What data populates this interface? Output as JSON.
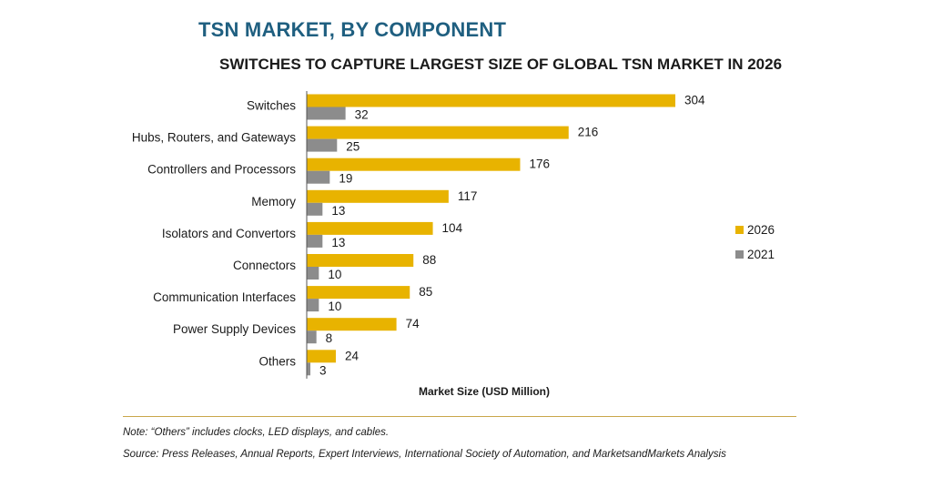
{
  "header": {
    "title": "TSN MARKET, BY COMPONENT",
    "subtitle": "SWITCHES TO CAPTURE LARGEST SIZE OF GLOBAL TSN MARKET IN 2026"
  },
  "chart_data": {
    "type": "bar",
    "orientation": "horizontal",
    "categories": [
      "Switches",
      "Hubs, Routers, and Gateways",
      "Controllers and Processors",
      "Memory",
      "Isolators and Convertors",
      "Connectors",
      "Communication Interfaces",
      "Power Supply Devices",
      "Others"
    ],
    "series": [
      {
        "name": "2026",
        "color": "#e8b300",
        "values": [
          304,
          216,
          176,
          117,
          104,
          88,
          85,
          74,
          24
        ]
      },
      {
        "name": "2021",
        "color": "#8c8c8c",
        "values": [
          32,
          25,
          19,
          13,
          13,
          10,
          10,
          8,
          3
        ]
      }
    ],
    "xlabel": "Market Size (USD Million)",
    "xlim": [
      0,
      304
    ],
    "grid": false,
    "data_labels": true,
    "legend": {
      "placement": "right"
    }
  },
  "footer": {
    "note": "Note: “Others” includes clocks, LED displays, and cables.",
    "source": "Source: Press Releases, Annual Reports, Expert Interviews, International Society of Automation, and MarketsandMarkets Analysis"
  }
}
